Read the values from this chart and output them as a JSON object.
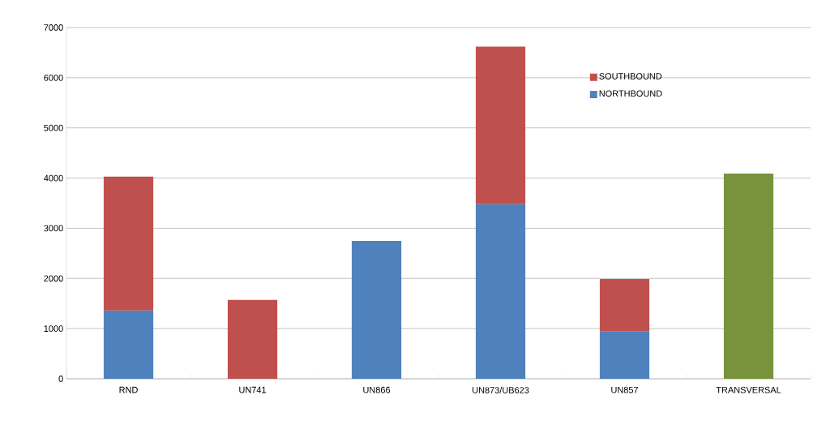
{
  "chart_data": {
    "type": "bar",
    "stacked": true,
    "categories": [
      "RND",
      "UN741",
      "UN866",
      "UN873/UB623",
      "UN857",
      "TRANSVERSAL"
    ],
    "series": [
      {
        "name": "NORTHBOUND",
        "color": "#4f81bd",
        "values": [
          1360,
          null,
          2750,
          3480,
          940,
          null
        ]
      },
      {
        "name": "SOUTHBOUND",
        "color": "#c0504d",
        "values": [
          2670,
          1570,
          null,
          3140,
          1050,
          null
        ]
      },
      {
        "color": "#77933c",
        "values": [
          null,
          null,
          null,
          null,
          null,
          4090
        ]
      }
    ],
    "ylim": [
      0,
      7000
    ],
    "yticks": [
      0,
      1000,
      2000,
      3000,
      4000,
      5000,
      6000,
      7000
    ],
    "grid": "y",
    "legend": "top right"
  }
}
